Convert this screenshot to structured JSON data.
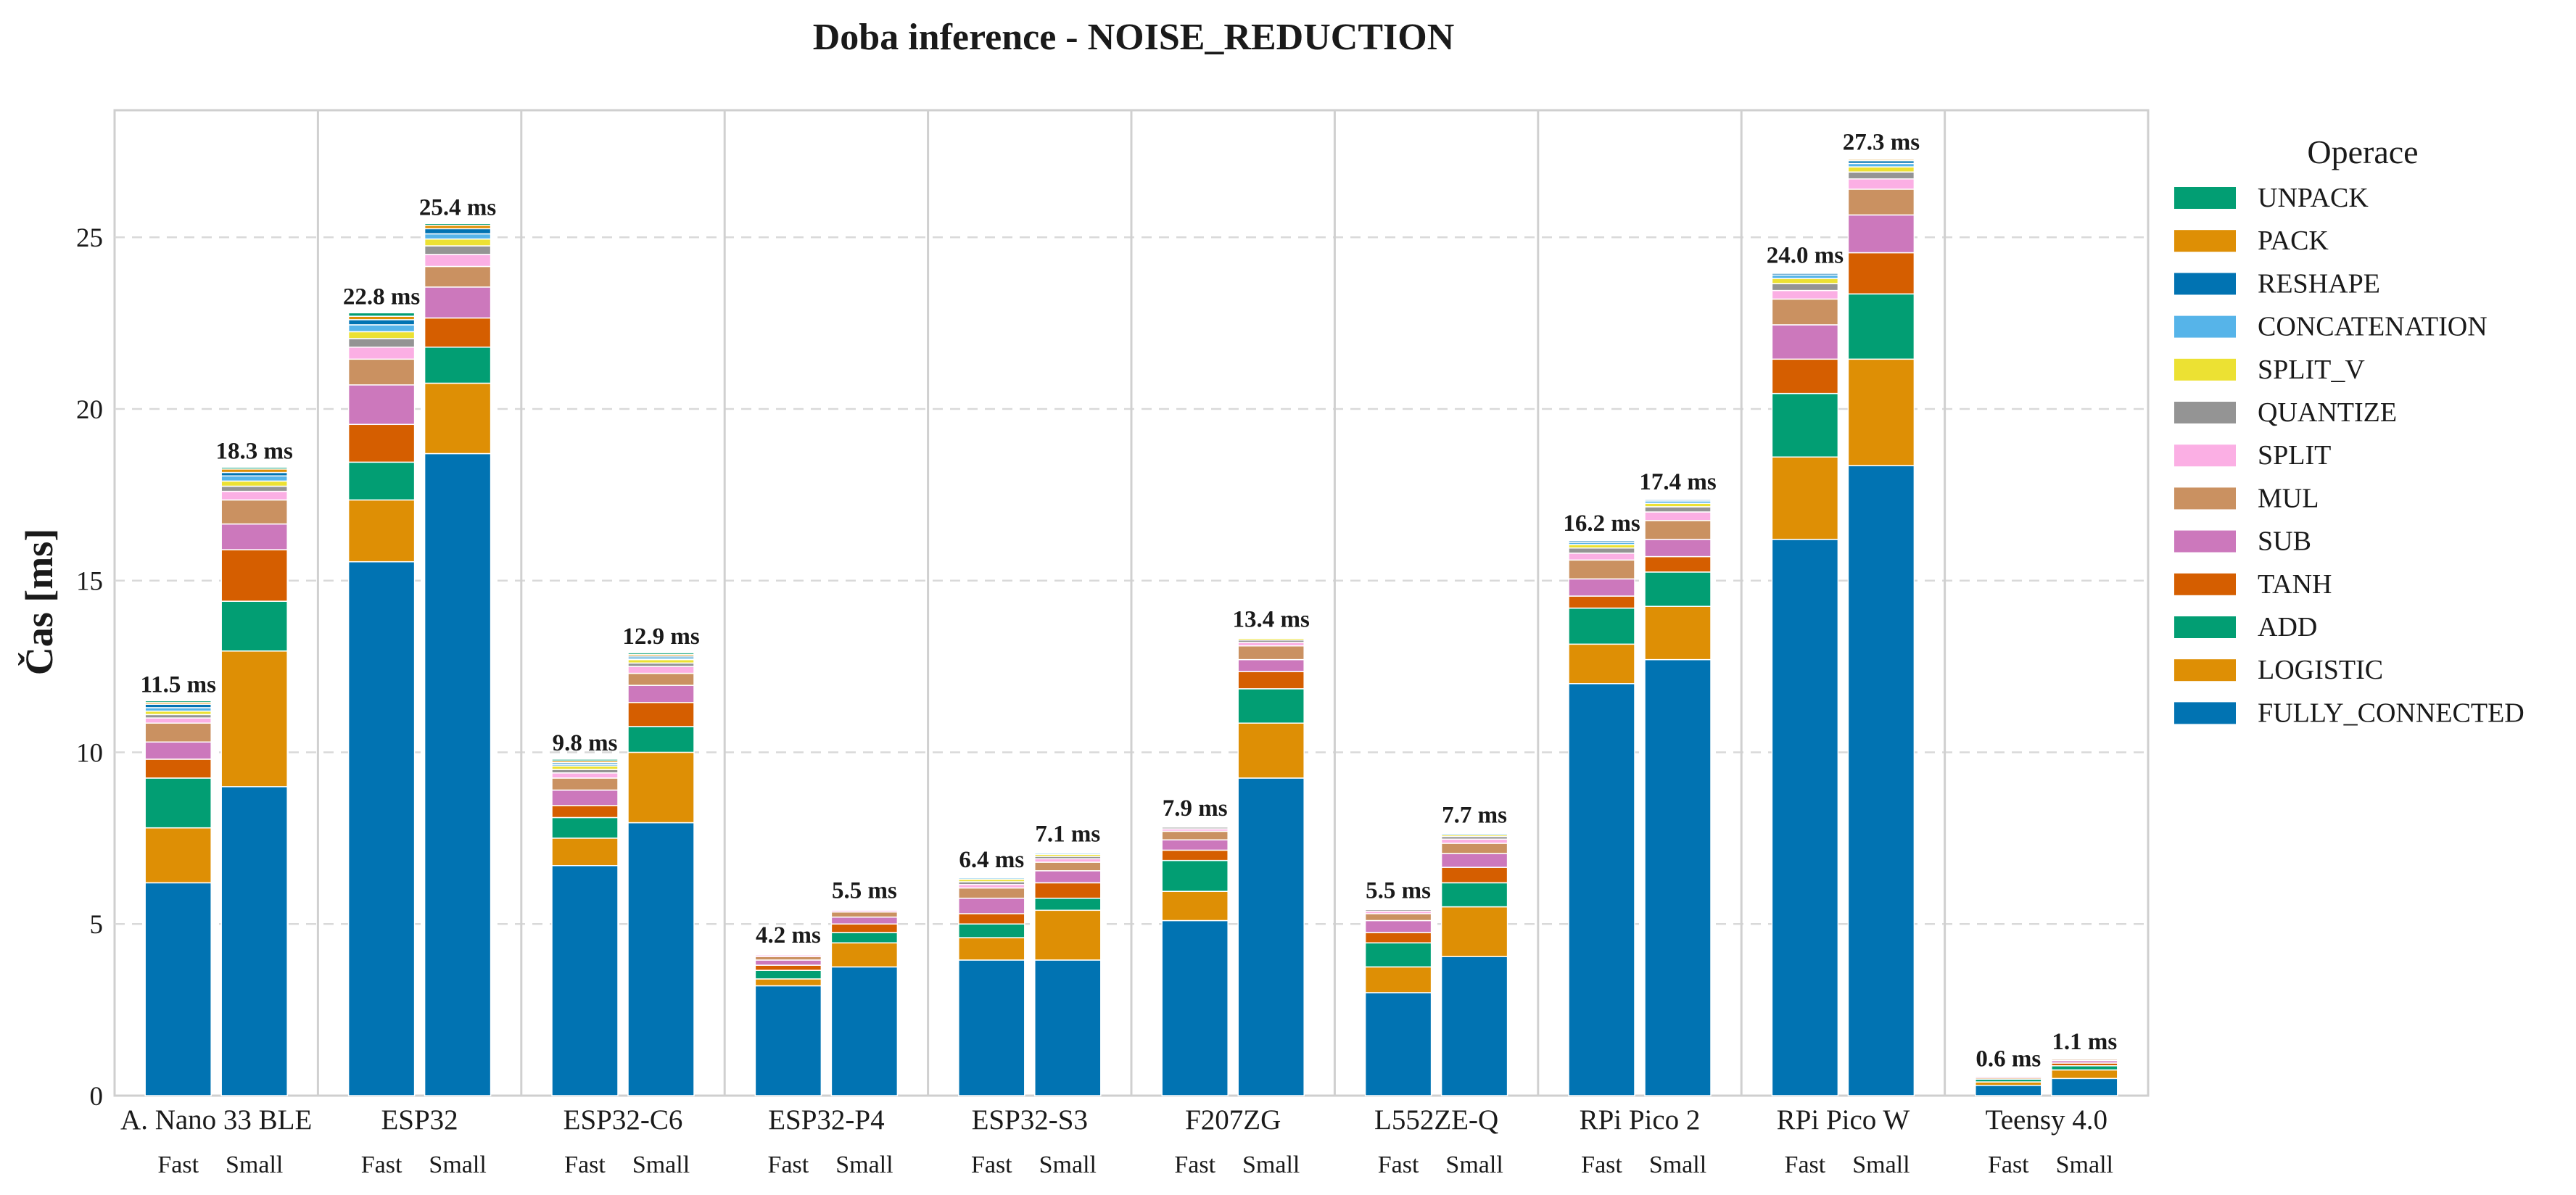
{
  "chart_data": {
    "type": "bar",
    "stacked": true,
    "title": "Doba inference - NOISE_REDUCTION",
    "ylabel": "Čas [ms]",
    "xlabel": "",
    "ylim": [
      0,
      28.7
    ],
    "yticks": [
      0,
      5,
      10,
      15,
      20,
      25
    ],
    "grid": "y-dashed",
    "value_unit": "ms",
    "legend": {
      "title": "Operace",
      "placement": "right-outside"
    },
    "groups": [
      "A. Nano 33 BLE",
      "ESP32",
      "ESP32-C6",
      "ESP32-P4",
      "ESP32-S3",
      "F207ZG",
      "L552ZE-Q",
      "RPi Pico 2",
      "RPi Pico W",
      "Teensy 4.0"
    ],
    "variants": [
      "Fast",
      "Small"
    ],
    "operations": [
      "FULLY_CONNECTED",
      "LOGISTIC",
      "ADD",
      "TANH",
      "SUB",
      "MUL",
      "SPLIT",
      "QUANTIZE",
      "SPLIT_V",
      "CONCATENATION",
      "RESHAPE",
      "PACK",
      "UNPACK"
    ],
    "colors": {
      "FULLY_CONNECTED": "#0173b2",
      "LOGISTIC": "#de8f05",
      "ADD": "#029e73",
      "TANH": "#d55e00",
      "SUB": "#cc78bc",
      "MUL": "#ca9161",
      "SPLIT": "#fbafe4",
      "QUANTIZE": "#949494",
      "SPLIT_V": "#ece133",
      "CONCATENATION": "#56b4e9",
      "RESHAPE": "#0173b2",
      "PACK": "#de8f05",
      "UNPACK": "#029e73"
    },
    "bars": [
      {
        "group": "A. Nano 33 BLE",
        "variant": "Fast",
        "total_label": "11.5 ms",
        "segments": [
          6.2,
          1.6,
          1.45,
          0.55,
          0.5,
          0.55,
          0.15,
          0.1,
          0.1,
          0.1,
          0.1,
          0.05,
          0.05
        ]
      },
      {
        "group": "A. Nano 33 BLE",
        "variant": "Small",
        "total_label": "18.3 ms",
        "segments": [
          9.0,
          3.95,
          1.45,
          1.5,
          0.75,
          0.7,
          0.25,
          0.15,
          0.15,
          0.15,
          0.1,
          0.1,
          0.05
        ]
      },
      {
        "group": "ESP32",
        "variant": "Fast",
        "total_label": "22.8 ms",
        "segments": [
          15.55,
          1.8,
          1.1,
          1.1,
          1.15,
          0.75,
          0.35,
          0.25,
          0.2,
          0.2,
          0.15,
          0.1,
          0.1
        ]
      },
      {
        "group": "ESP32",
        "variant": "Small",
        "total_label": "25.4 ms",
        "segments": [
          18.7,
          2.05,
          1.05,
          0.85,
          0.9,
          0.6,
          0.35,
          0.25,
          0.2,
          0.15,
          0.15,
          0.1,
          0.05
        ]
      },
      {
        "group": "ESP32-C6",
        "variant": "Fast",
        "total_label": "9.8 ms",
        "segments": [
          6.7,
          0.8,
          0.6,
          0.35,
          0.45,
          0.35,
          0.15,
          0.1,
          0.1,
          0.05,
          0.05,
          0.05,
          0.05
        ]
      },
      {
        "group": "ESP32-C6",
        "variant": "Small",
        "total_label": "12.9 ms",
        "segments": [
          7.95,
          2.05,
          0.75,
          0.7,
          0.5,
          0.35,
          0.2,
          0.1,
          0.1,
          0.05,
          0.05,
          0.05,
          0.05
        ]
      },
      {
        "group": "ESP32-P4",
        "variant": "Fast",
        "total_label": "4.2 ms",
        "segments": [
          3.2,
          0.2,
          0.25,
          0.15,
          0.15,
          0.1,
          0.05,
          0.03,
          0.03,
          0.02,
          0.02,
          0.0,
          0.0
        ]
      },
      {
        "group": "ESP32-P4",
        "variant": "Small",
        "total_label": "5.5 ms",
        "segments": [
          3.75,
          0.7,
          0.3,
          0.25,
          0.2,
          0.15,
          0.05,
          0.03,
          0.03,
          0.02,
          0.02,
          0.0,
          0.0
        ]
      },
      {
        "group": "ESP32-S3",
        "variant": "Fast",
        "total_label": "6.4 ms",
        "segments": [
          3.95,
          0.65,
          0.4,
          0.3,
          0.45,
          0.3,
          0.1,
          0.08,
          0.07,
          0.04,
          0.03,
          0.02,
          0.01
        ]
      },
      {
        "group": "ESP32-S3",
        "variant": "Small",
        "total_label": "7.1 ms",
        "segments": [
          3.95,
          1.45,
          0.35,
          0.45,
          0.35,
          0.25,
          0.1,
          0.07,
          0.06,
          0.04,
          0.03,
          0.02,
          0.03
        ]
      },
      {
        "group": "F207ZG",
        "variant": "Fast",
        "total_label": "7.9 ms",
        "segments": [
          5.1,
          0.85,
          0.9,
          0.3,
          0.3,
          0.25,
          0.07,
          0.05,
          0.03,
          0.02,
          0.01,
          0.01,
          0.01
        ]
      },
      {
        "group": "F207ZG",
        "variant": "Small",
        "total_label": "13.4 ms",
        "segments": [
          9.25,
          1.6,
          1.0,
          0.5,
          0.35,
          0.4,
          0.1,
          0.07,
          0.05,
          0.03,
          0.02,
          0.02,
          0.01
        ]
      },
      {
        "group": "L552ZE-Q",
        "variant": "Fast",
        "total_label": "5.5 ms",
        "segments": [
          3.0,
          0.75,
          0.7,
          0.3,
          0.35,
          0.2,
          0.07,
          0.05,
          0.03,
          0.02,
          0.01,
          0.01,
          0.01
        ]
      },
      {
        "group": "L552ZE-Q",
        "variant": "Small",
        "total_label": "7.7 ms",
        "segments": [
          4.05,
          1.45,
          0.7,
          0.45,
          0.4,
          0.3,
          0.12,
          0.08,
          0.05,
          0.04,
          0.03,
          0.02,
          0.01
        ]
      },
      {
        "group": "RPi Pico 2",
        "variant": "Fast",
        "total_label": "16.2 ms",
        "segments": [
          12.0,
          1.15,
          1.05,
          0.35,
          0.5,
          0.55,
          0.2,
          0.15,
          0.1,
          0.06,
          0.05,
          0.02,
          0.02
        ]
      },
      {
        "group": "RPi Pico 2",
        "variant": "Small",
        "total_label": "17.4 ms",
        "segments": [
          12.7,
          1.55,
          1.0,
          0.45,
          0.5,
          0.55,
          0.25,
          0.15,
          0.1,
          0.07,
          0.04,
          0.02,
          0.02
        ]
      },
      {
        "group": "RPi Pico W",
        "variant": "Fast",
        "total_label": "24.0 ms",
        "segments": [
          16.2,
          2.4,
          1.85,
          1.0,
          1.0,
          0.75,
          0.25,
          0.2,
          0.15,
          0.1,
          0.05,
          0.03,
          0.02
        ]
      },
      {
        "group": "RPi Pico W",
        "variant": "Small",
        "total_label": "27.3 ms",
        "segments": [
          18.35,
          3.1,
          1.9,
          1.2,
          1.1,
          0.75,
          0.3,
          0.2,
          0.15,
          0.1,
          0.08,
          0.04,
          0.03
        ]
      },
      {
        "group": "Teensy 4.0",
        "variant": "Fast",
        "total_label": "0.6 ms",
        "segments": [
          0.3,
          0.1,
          0.08,
          0.04,
          0.04,
          0.02,
          0.01,
          0.005,
          0.005,
          0.0,
          0.0,
          0.0,
          0.0
        ]
      },
      {
        "group": "Teensy 4.0",
        "variant": "Small",
        "total_label": "1.1 ms",
        "segments": [
          0.5,
          0.25,
          0.12,
          0.08,
          0.07,
          0.04,
          0.02,
          0.01,
          0.01,
          0.0,
          0.0,
          0.0,
          0.0
        ]
      }
    ]
  }
}
